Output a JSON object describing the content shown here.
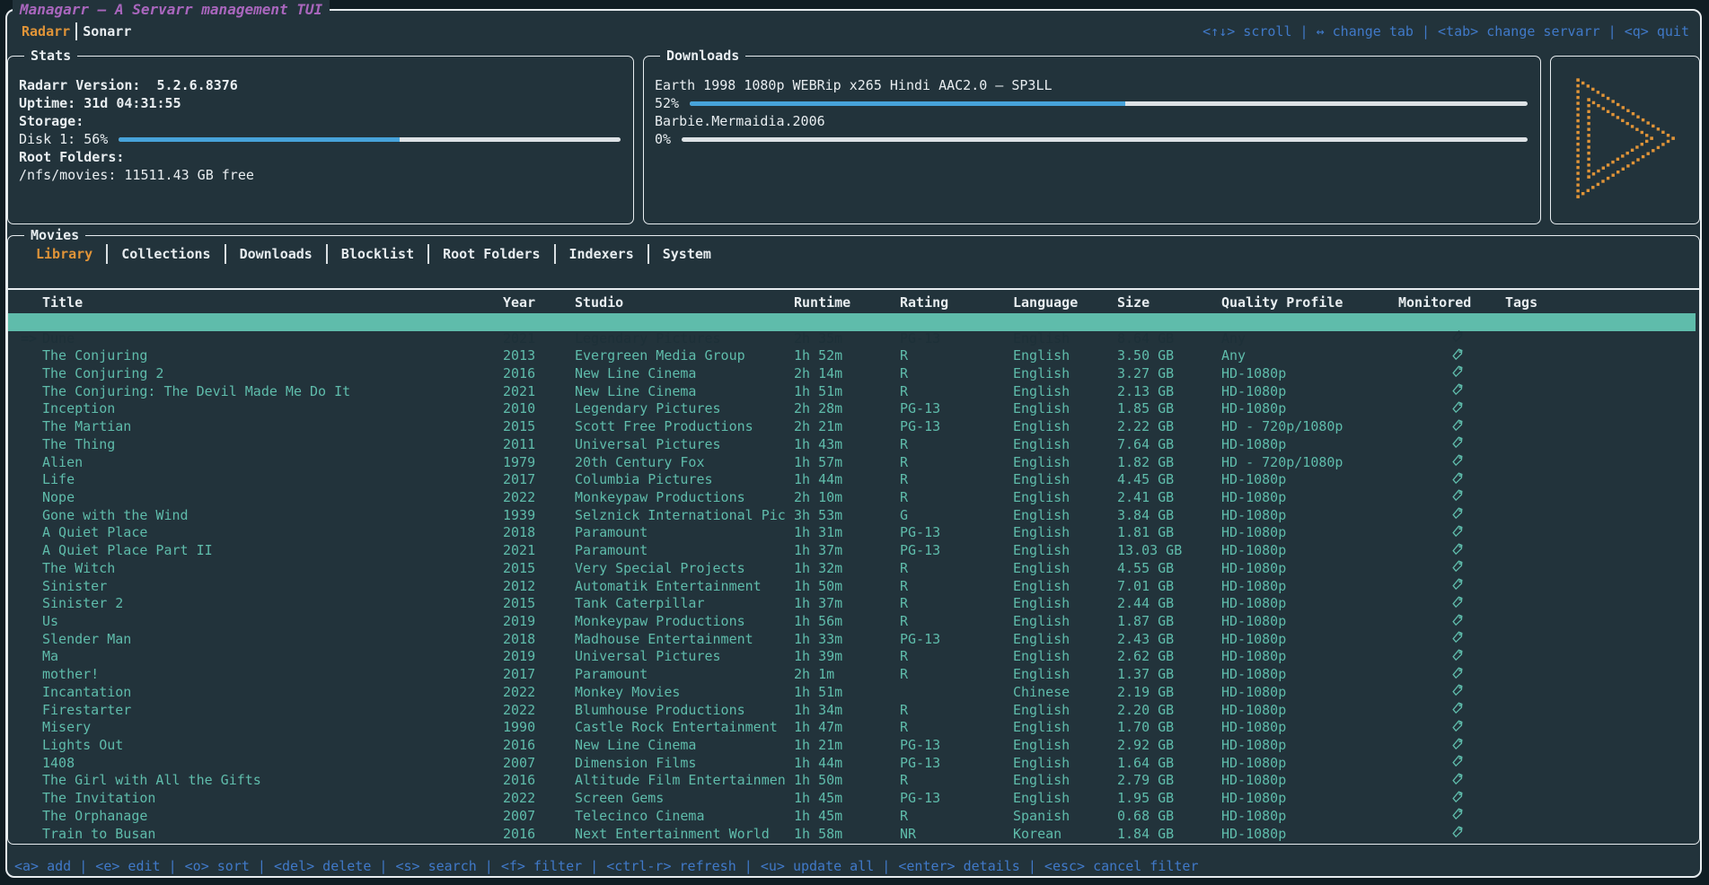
{
  "app": {
    "title": "Managarr – A Servarr management TUI",
    "servarr_tabs": [
      {
        "label": "Radarr",
        "active": true
      },
      {
        "label": "Sonarr",
        "active": false
      }
    ],
    "top_hints": "<↑↓> scroll | ↔ change tab | <tab> change servarr | <q> quit",
    "bottom_hints": "<a> add | <e> edit | <o> sort | <del> delete | <s> search | <f> filter | <ctrl-r> refresh | <u> update all | <enter> details | <esc> cancel filter"
  },
  "stats": {
    "panel_title": "Stats",
    "version_line": "Radarr Version:  5.2.6.8376",
    "uptime_line": "Uptime: 31d 04:31:55",
    "storage_label": "Storage:",
    "disk_label": "Disk 1: 56%",
    "disk_pct": 56,
    "root_folders_label": "Root Folders:",
    "root_folder_value": "/nfs/movies: 11511.43 GB free"
  },
  "downloads": {
    "panel_title": "Downloads",
    "items": [
      {
        "name": "Earth 1998 1080p WEBRip x265 Hindi AAC2.0 – SP3LL",
        "pct_label": "52%",
        "pct": 52
      },
      {
        "name": "Barbie.Mermaidia.2006",
        "pct_label": "0%",
        "pct": 0
      }
    ]
  },
  "logo": {
    "name": "managarr-play-logo",
    "color": "#e09438"
  },
  "movies": {
    "panel_title": "Movies",
    "tabs": [
      {
        "label": "Library",
        "active": true
      },
      {
        "label": "Collections",
        "active": false
      },
      {
        "label": "Downloads",
        "active": false
      },
      {
        "label": "Blocklist",
        "active": false
      },
      {
        "label": "Root Folders",
        "active": false
      },
      {
        "label": "Indexers",
        "active": false
      },
      {
        "label": "System",
        "active": false
      }
    ],
    "columns": [
      "Title",
      "Year",
      "Studio",
      "Runtime",
      "Rating",
      "Language",
      "Size",
      "Quality Profile",
      "Monitored",
      "Tags"
    ],
    "selected_indicator": "=>",
    "rows": [
      {
        "title": "Dune",
        "year": "2021",
        "studio": "Legendary Pictures",
        "runtime": "2h 35m",
        "rating": "PG-13",
        "language": "English",
        "size": "8.64 GB",
        "quality": "Any",
        "monitored": true,
        "tags": "",
        "selected": true
      },
      {
        "title": "The Conjuring",
        "year": "2013",
        "studio": "Evergreen Media Group",
        "runtime": "1h 52m",
        "rating": "R",
        "language": "English",
        "size": "3.50 GB",
        "quality": "Any",
        "monitored": true,
        "tags": ""
      },
      {
        "title": "The Conjuring 2",
        "year": "2016",
        "studio": "New Line Cinema",
        "runtime": "2h 14m",
        "rating": "R",
        "language": "English",
        "size": "3.27 GB",
        "quality": "HD-1080p",
        "monitored": true,
        "tags": ""
      },
      {
        "title": "The Conjuring: The Devil Made Me Do It",
        "year": "2021",
        "studio": "New Line Cinema",
        "runtime": "1h 51m",
        "rating": "R",
        "language": "English",
        "size": "2.13 GB",
        "quality": "HD-1080p",
        "monitored": true,
        "tags": ""
      },
      {
        "title": "Inception",
        "year": "2010",
        "studio": "Legendary Pictures",
        "runtime": "2h 28m",
        "rating": "PG-13",
        "language": "English",
        "size": "1.85 GB",
        "quality": "HD-1080p",
        "monitored": true,
        "tags": ""
      },
      {
        "title": "The Martian",
        "year": "2015",
        "studio": "Scott Free Productions",
        "runtime": "2h 21m",
        "rating": "PG-13",
        "language": "English",
        "size": "2.22 GB",
        "quality": "HD - 720p/1080p",
        "monitored": true,
        "tags": ""
      },
      {
        "title": "The Thing",
        "year": "2011",
        "studio": "Universal Pictures",
        "runtime": "1h 43m",
        "rating": "R",
        "language": "English",
        "size": "7.64 GB",
        "quality": "HD-1080p",
        "monitored": true,
        "tags": ""
      },
      {
        "title": "Alien",
        "year": "1979",
        "studio": "20th Century Fox",
        "runtime": "1h 57m",
        "rating": "R",
        "language": "English",
        "size": "1.82 GB",
        "quality": "HD - 720p/1080p",
        "monitored": true,
        "tags": ""
      },
      {
        "title": "Life",
        "year": "2017",
        "studio": "Columbia Pictures",
        "runtime": "1h 44m",
        "rating": "R",
        "language": "English",
        "size": "4.45 GB",
        "quality": "HD-1080p",
        "monitored": true,
        "tags": ""
      },
      {
        "title": "Nope",
        "year": "2022",
        "studio": "Monkeypaw Productions",
        "runtime": "2h 10m",
        "rating": "R",
        "language": "English",
        "size": "2.41 GB",
        "quality": "HD-1080p",
        "monitored": true,
        "tags": ""
      },
      {
        "title": "Gone with the Wind",
        "year": "1939",
        "studio": "Selznick International Pic",
        "runtime": "3h 53m",
        "rating": "G",
        "language": "English",
        "size": "3.84 GB",
        "quality": "HD-1080p",
        "monitored": true,
        "tags": ""
      },
      {
        "title": "A Quiet Place",
        "year": "2018",
        "studio": "Paramount",
        "runtime": "1h 31m",
        "rating": "PG-13",
        "language": "English",
        "size": "1.81 GB",
        "quality": "HD-1080p",
        "monitored": true,
        "tags": ""
      },
      {
        "title": "A Quiet Place Part II",
        "year": "2021",
        "studio": "Paramount",
        "runtime": "1h 37m",
        "rating": "PG-13",
        "language": "English",
        "size": "13.03 GB",
        "quality": "HD-1080p",
        "monitored": true,
        "tags": ""
      },
      {
        "title": "The Witch",
        "year": "2015",
        "studio": "Very Special Projects",
        "runtime": "1h 32m",
        "rating": "R",
        "language": "English",
        "size": "4.55 GB",
        "quality": "HD-1080p",
        "monitored": true,
        "tags": ""
      },
      {
        "title": "Sinister",
        "year": "2012",
        "studio": "Automatik Entertainment",
        "runtime": "1h 50m",
        "rating": "R",
        "language": "English",
        "size": "7.01 GB",
        "quality": "HD-1080p",
        "monitored": true,
        "tags": ""
      },
      {
        "title": "Sinister 2",
        "year": "2015",
        "studio": "Tank Caterpillar",
        "runtime": "1h 37m",
        "rating": "R",
        "language": "English",
        "size": "2.44 GB",
        "quality": "HD-1080p",
        "monitored": true,
        "tags": ""
      },
      {
        "title": "Us",
        "year": "2019",
        "studio": "Monkeypaw Productions",
        "runtime": "1h 56m",
        "rating": "R",
        "language": "English",
        "size": "1.87 GB",
        "quality": "HD-1080p",
        "monitored": true,
        "tags": ""
      },
      {
        "title": "Slender Man",
        "year": "2018",
        "studio": "Madhouse Entertainment",
        "runtime": "1h 33m",
        "rating": "PG-13",
        "language": "English",
        "size": "2.43 GB",
        "quality": "HD-1080p",
        "monitored": true,
        "tags": ""
      },
      {
        "title": "Ma",
        "year": "2019",
        "studio": "Universal Pictures",
        "runtime": "1h 39m",
        "rating": "R",
        "language": "English",
        "size": "2.62 GB",
        "quality": "HD-1080p",
        "monitored": true,
        "tags": ""
      },
      {
        "title": "mother!",
        "year": "2017",
        "studio": "Paramount",
        "runtime": "2h 1m",
        "rating": "R",
        "language": "English",
        "size": "1.37 GB",
        "quality": "HD-1080p",
        "monitored": true,
        "tags": ""
      },
      {
        "title": "Incantation",
        "year": "2022",
        "studio": "Monkey Movies",
        "runtime": "1h 51m",
        "rating": "",
        "language": "Chinese",
        "size": "2.19 GB",
        "quality": "HD-1080p",
        "monitored": true,
        "tags": ""
      },
      {
        "title": "Firestarter",
        "year": "2022",
        "studio": "Blumhouse Productions",
        "runtime": "1h 34m",
        "rating": "R",
        "language": "English",
        "size": "2.20 GB",
        "quality": "HD-1080p",
        "monitored": true,
        "tags": ""
      },
      {
        "title": "Misery",
        "year": "1990",
        "studio": "Castle Rock Entertainment",
        "runtime": "1h 47m",
        "rating": "R",
        "language": "English",
        "size": "1.70 GB",
        "quality": "HD-1080p",
        "monitored": true,
        "tags": ""
      },
      {
        "title": "Lights Out",
        "year": "2016",
        "studio": "New Line Cinema",
        "runtime": "1h 21m",
        "rating": "PG-13",
        "language": "English",
        "size": "2.92 GB",
        "quality": "HD-1080p",
        "monitored": true,
        "tags": ""
      },
      {
        "title": "1408",
        "year": "2007",
        "studio": "Dimension Films",
        "runtime": "1h 44m",
        "rating": "PG-13",
        "language": "English",
        "size": "1.64 GB",
        "quality": "HD-1080p",
        "monitored": true,
        "tags": ""
      },
      {
        "title": "The Girl with All the Gifts",
        "year": "2016",
        "studio": "Altitude Film Entertainmen",
        "runtime": "1h 50m",
        "rating": "R",
        "language": "English",
        "size": "2.79 GB",
        "quality": "HD-1080p",
        "monitored": true,
        "tags": ""
      },
      {
        "title": "The Invitation",
        "year": "2022",
        "studio": "Screen Gems",
        "runtime": "1h 45m",
        "rating": "PG-13",
        "language": "English",
        "size": "1.95 GB",
        "quality": "HD-1080p",
        "monitored": true,
        "tags": ""
      },
      {
        "title": "The Orphanage",
        "year": "2007",
        "studio": "Telecinco Cinema",
        "runtime": "1h 45m",
        "rating": "R",
        "language": "Spanish",
        "size": "0.68 GB",
        "quality": "HD-1080p",
        "monitored": true,
        "tags": ""
      },
      {
        "title": "Train to Busan",
        "year": "2016",
        "studio": "Next Entertainment World",
        "runtime": "1h 58m",
        "rating": "NR",
        "language": "Korean",
        "size": "1.84 GB",
        "quality": "HD-1080p",
        "monitored": true,
        "tags": ""
      }
    ]
  },
  "colors": {
    "background": "#22333b",
    "border": "#e8edf0",
    "accent_orange": "#e09438",
    "title_purple": "#a966bd",
    "hint_blue": "#4079c8",
    "row_teal": "#5fbcab",
    "bar_fill_blue": "#47a3da",
    "bar_rest": "#dde2e5"
  }
}
